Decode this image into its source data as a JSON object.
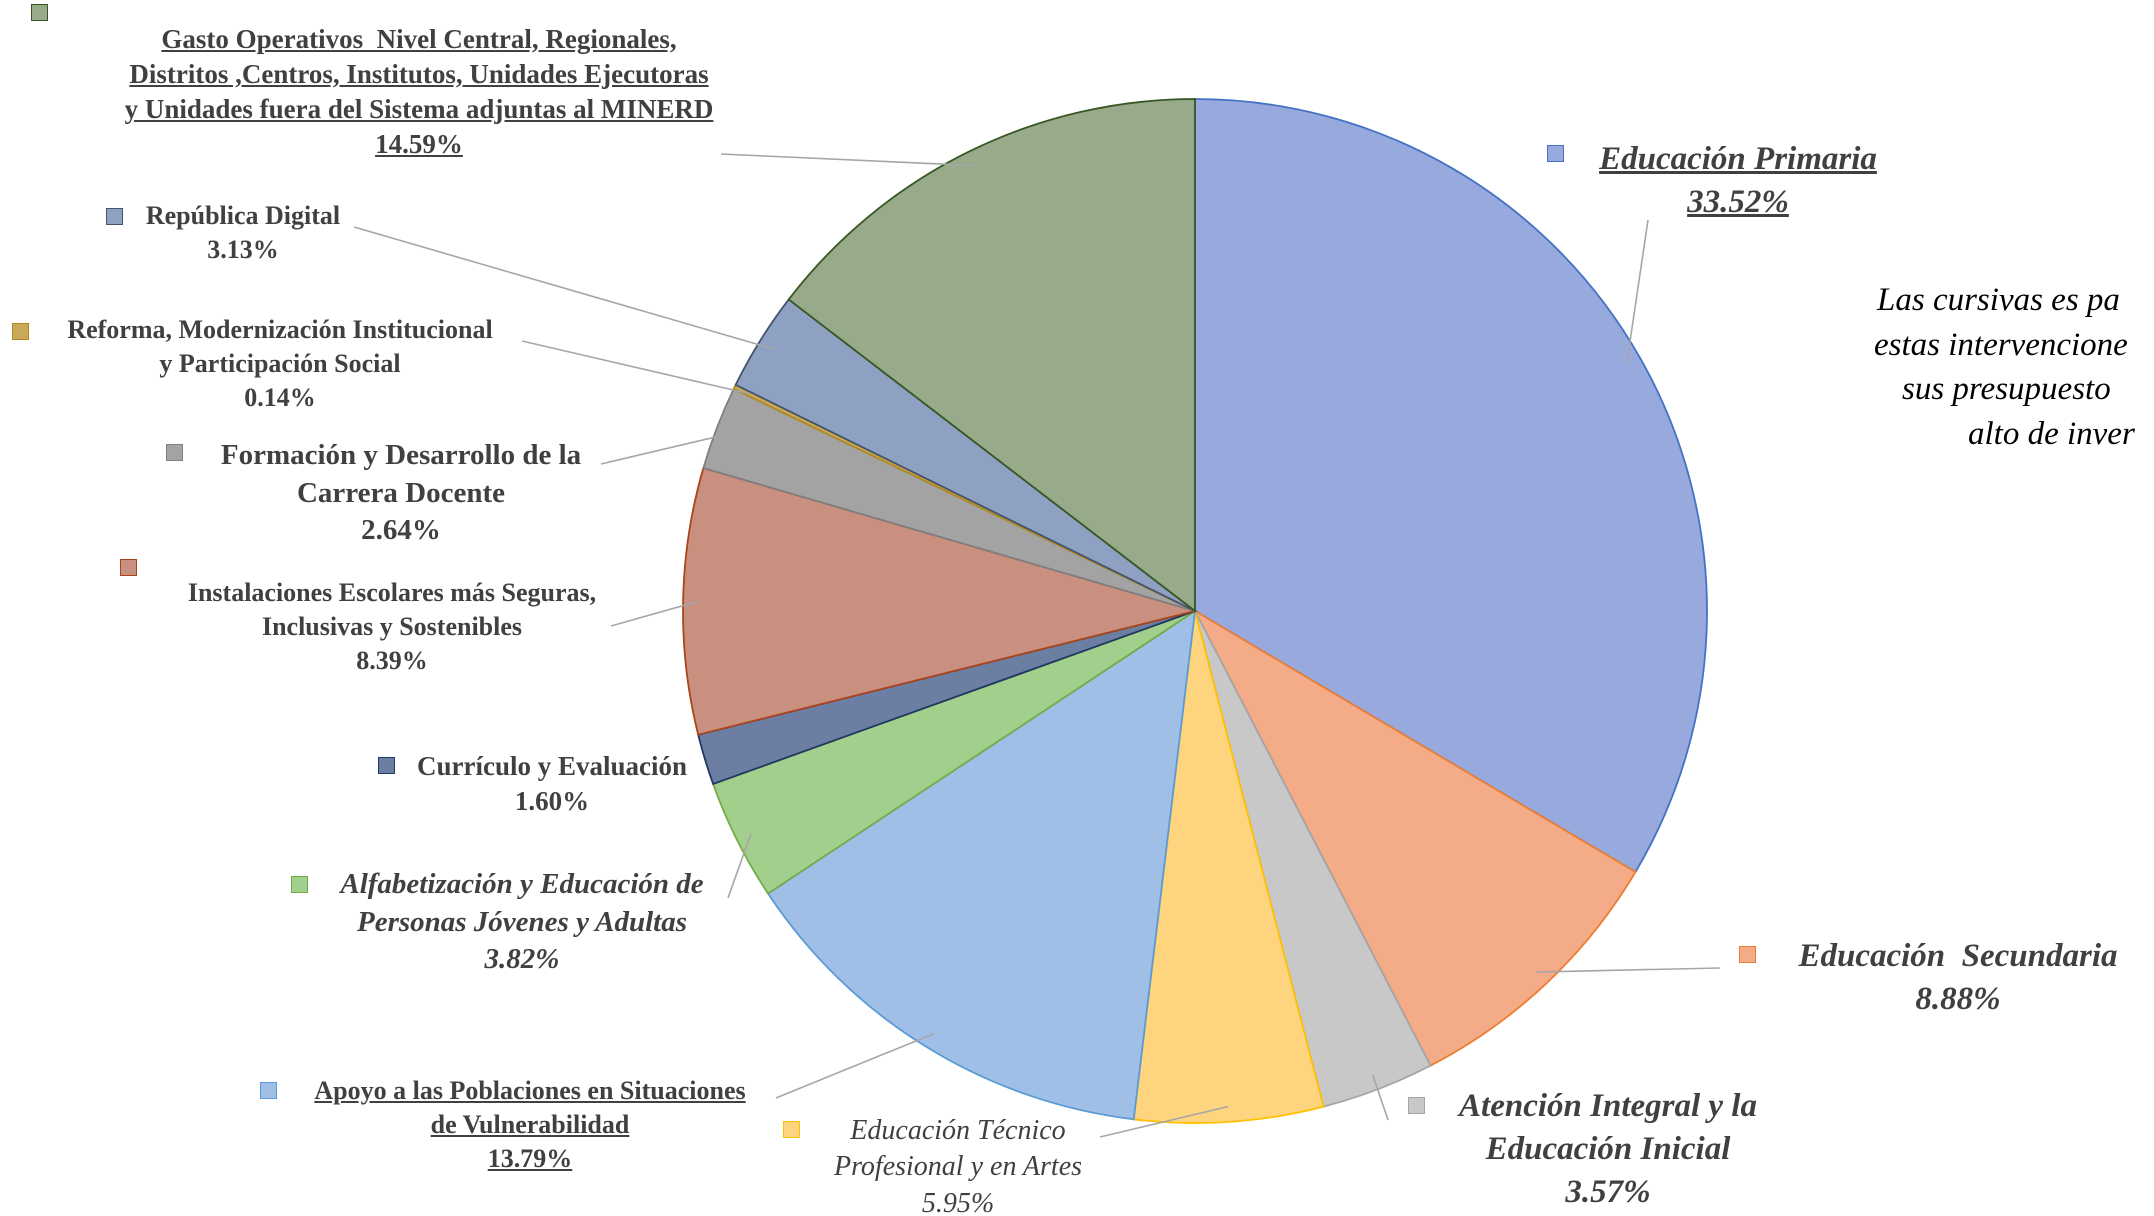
{
  "chart_data": {
    "type": "pie",
    "categories": [
      "Educación Primaria",
      "Educación  Secundaria",
      "Atención Integral y la\nEducación Inicial",
      "Educación Técnico\nProfesional y en Artes",
      "Apoyo a las Poblaciones en Situaciones\nde Vulnerabilidad",
      "Alfabetización y Educación de\nPersonas Jóvenes y Adultas",
      "Currículo y Evaluación",
      "Instalaciones Escolares más Seguras,\nInclusivas y Sostenibles",
      "Formación y Desarrollo de la\nCarrera Docente",
      "Reforma, Modernización Institucional\ny Participación Social",
      "República Digital",
      "Gasto Operativos  Nivel Central, Regionales,\nDistritos ,Centros, Institutos, Unidades Ejecutoras\ny Unidades fuera del Sistema adjuntas al MINERD"
    ],
    "values": [
      33.52,
      8.88,
      3.57,
      5.95,
      13.79,
      3.82,
      1.6,
      8.39,
      2.64,
      0.14,
      3.13,
      14.59
    ],
    "value_labels": [
      "33.52%",
      "8.88%",
      "3.57%",
      "5.95%",
      "13.79%",
      "3.82%",
      "1.60%",
      "8.39%",
      "2.64%",
      "0.14%",
      "3.13%",
      "14.59%"
    ],
    "colors": [
      "#97a9dd",
      "#f4ab88",
      "#c8c8c8",
      "#ffd47e",
      "#9fbfe6",
      "#a2d08c",
      "#6d7ea3",
      "#c9907f",
      "#a3a3a3",
      "#c9a85a",
      "#8ea1c3",
      "#97aa8a"
    ],
    "annotation": [
      "Las cursivas es pa",
      "estas intervencione",
      "sus presupuesto",
      "alto de inver"
    ]
  }
}
